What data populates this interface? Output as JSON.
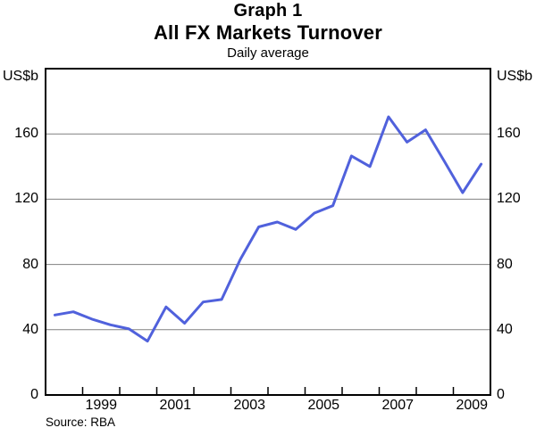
{
  "title": {
    "kicker": "Graph 1",
    "main": "All FX Markets Turnover",
    "subtitle": "Daily average"
  },
  "axes": {
    "unit_left": "US$b",
    "unit_right": "US$b"
  },
  "source": "Source: RBA",
  "colors": {
    "line": "#5061DC",
    "grid": "#808080",
    "axis": "#000000",
    "background": "#ffffff"
  },
  "chart_data": {
    "type": "line",
    "title": "Graph 1",
    "main_title": "All FX Markets Turnover",
    "subtitle": "Daily average",
    "ylabel": "US$b",
    "series_name": "All FX markets turnover, daily average (US$b), semi-annual",
    "x": [
      1998.25,
      1998.75,
      1999.25,
      1999.75,
      2000.25,
      2000.75,
      2001.25,
      2001.75,
      2002.25,
      2002.75,
      2003.25,
      2003.75,
      2004.25,
      2004.75,
      2005.25,
      2005.75,
      2006.25,
      2006.75,
      2007.25,
      2007.75,
      2008.25,
      2008.75,
      2009.25,
      2009.75
    ],
    "values": [
      49,
      51,
      46.5,
      43,
      40.5,
      33,
      54,
      44,
      57,
      58.5,
      83,
      103,
      106,
      101.5,
      111.5,
      116,
      146.5,
      140,
      170.5,
      155,
      162.5,
      143.5,
      124,
      141.5
    ],
    "xlim": [
      1998,
      2010
    ],
    "ylim": [
      0,
      200
    ],
    "yticks": [
      0,
      40,
      80,
      120,
      160
    ],
    "gridlines": [
      40,
      80,
      120,
      160
    ],
    "xtick_label_years": [
      1999,
      2001,
      2003,
      2005,
      2007,
      2009
    ],
    "year_boundary_ticks": [
      1999,
      2000,
      2001,
      2002,
      2003,
      2004,
      2005,
      2006,
      2007,
      2008,
      2009
    ],
    "grid": "horizontal",
    "legend": "none"
  }
}
